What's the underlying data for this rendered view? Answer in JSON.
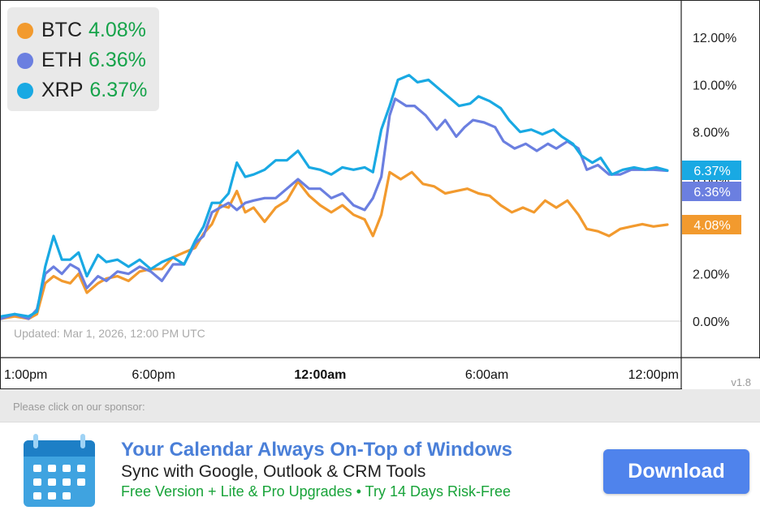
{
  "chart_data": {
    "type": "line",
    "ylabel_side": "right",
    "ylim": [
      -1.0,
      13.5
    ],
    "yticks": [
      "12.00%",
      "10.00%",
      "8.00%",
      "6.00%",
      "4.00%",
      "2.00%",
      "0.00%"
    ],
    "ytick_values": [
      12,
      10,
      8,
      6,
      4,
      2,
      0
    ],
    "xlim_hours": [
      0,
      24.5
    ],
    "xticks": [
      {
        "label": "1:00pm",
        "hour": 0.5,
        "bold": false
      },
      {
        "label": "6:00pm",
        "hour": 5.5,
        "bold": false
      },
      {
        "label": "12:00am",
        "hour": 11.5,
        "bold": true
      },
      {
        "label": "6:00am",
        "hour": 17.5,
        "bold": false
      },
      {
        "label": "12:00pm",
        "hour": 23.5,
        "bold": false
      }
    ],
    "updated_note": "Updated: Mar 1, 2026, 12:00 PM UTC",
    "version": "v1.8",
    "series": [
      {
        "name": "BTC",
        "color": "#f29a2e",
        "last_label": "4.08%",
        "points": [
          [
            0,
            0.1
          ],
          [
            0.5,
            0.2
          ],
          [
            1,
            0.1
          ],
          [
            1.3,
            0.3
          ],
          [
            1.6,
            1.6
          ],
          [
            1.9,
            1.9
          ],
          [
            2.2,
            1.7
          ],
          [
            2.5,
            1.6
          ],
          [
            2.8,
            2.0
          ],
          [
            3.1,
            1.2
          ],
          [
            3.5,
            1.6
          ],
          [
            3.8,
            1.8
          ],
          [
            4.2,
            1.9
          ],
          [
            4.6,
            1.7
          ],
          [
            5,
            2.1
          ],
          [
            5.4,
            2.2
          ],
          [
            5.8,
            2.2
          ],
          [
            6.2,
            2.7
          ],
          [
            6.6,
            2.9
          ],
          [
            7,
            3.1
          ],
          [
            7.3,
            3.7
          ],
          [
            7.6,
            4.1
          ],
          [
            7.9,
            4.9
          ],
          [
            8.2,
            4.8
          ],
          [
            8.5,
            5.5
          ],
          [
            8.8,
            4.6
          ],
          [
            9.1,
            4.8
          ],
          [
            9.5,
            4.2
          ],
          [
            9.9,
            4.8
          ],
          [
            10.3,
            5.1
          ],
          [
            10.7,
            5.9
          ],
          [
            11.1,
            5.3
          ],
          [
            11.5,
            4.9
          ],
          [
            11.9,
            4.6
          ],
          [
            12.3,
            4.9
          ],
          [
            12.7,
            4.5
          ],
          [
            13.1,
            4.3
          ],
          [
            13.4,
            3.6
          ],
          [
            13.7,
            4.5
          ],
          [
            14.0,
            6.3
          ],
          [
            14.4,
            6.0
          ],
          [
            14.8,
            6.3
          ],
          [
            15.2,
            5.8
          ],
          [
            15.6,
            5.7
          ],
          [
            16.0,
            5.4
          ],
          [
            16.4,
            5.5
          ],
          [
            16.8,
            5.6
          ],
          [
            17.2,
            5.4
          ],
          [
            17.6,
            5.3
          ],
          [
            18.0,
            4.9
          ],
          [
            18.4,
            4.6
          ],
          [
            18.8,
            4.8
          ],
          [
            19.2,
            4.6
          ],
          [
            19.6,
            5.1
          ],
          [
            20.0,
            4.8
          ],
          [
            20.4,
            5.1
          ],
          [
            20.8,
            4.5
          ],
          [
            21.1,
            3.9
          ],
          [
            21.5,
            3.8
          ],
          [
            21.9,
            3.6
          ],
          [
            22.3,
            3.9
          ],
          [
            22.7,
            4.0
          ],
          [
            23.1,
            4.1
          ],
          [
            23.5,
            4.0
          ],
          [
            24.0,
            4.08
          ]
        ]
      },
      {
        "name": "ETH",
        "color": "#6b7fe0",
        "last_label": "6.36%",
        "points": [
          [
            0,
            0.1
          ],
          [
            0.5,
            0.3
          ],
          [
            1,
            0.1
          ],
          [
            1.3,
            0.5
          ],
          [
            1.6,
            2.0
          ],
          [
            1.9,
            2.3
          ],
          [
            2.2,
            2.0
          ],
          [
            2.5,
            2.4
          ],
          [
            2.8,
            2.2
          ],
          [
            3.1,
            1.4
          ],
          [
            3.5,
            1.9
          ],
          [
            3.8,
            1.7
          ],
          [
            4.2,
            2.1
          ],
          [
            4.6,
            2.0
          ],
          [
            5,
            2.3
          ],
          [
            5.4,
            2.1
          ],
          [
            5.8,
            1.7
          ],
          [
            6.2,
            2.4
          ],
          [
            6.6,
            2.4
          ],
          [
            7,
            3.3
          ],
          [
            7.3,
            3.6
          ],
          [
            7.6,
            4.6
          ],
          [
            7.9,
            4.8
          ],
          [
            8.2,
            5.0
          ],
          [
            8.5,
            4.7
          ],
          [
            8.8,
            5.0
          ],
          [
            9.1,
            5.1
          ],
          [
            9.5,
            5.2
          ],
          [
            9.9,
            5.2
          ],
          [
            10.3,
            5.6
          ],
          [
            10.7,
            6.0
          ],
          [
            11.1,
            5.6
          ],
          [
            11.5,
            5.6
          ],
          [
            11.9,
            5.2
          ],
          [
            12.3,
            5.4
          ],
          [
            12.7,
            4.9
          ],
          [
            13.1,
            4.7
          ],
          [
            13.4,
            5.2
          ],
          [
            13.7,
            6.1
          ],
          [
            14.0,
            8.7
          ],
          [
            14.2,
            9.4
          ],
          [
            14.6,
            9.1
          ],
          [
            14.9,
            9.1
          ],
          [
            15.3,
            8.7
          ],
          [
            15.7,
            8.1
          ],
          [
            16.0,
            8.5
          ],
          [
            16.4,
            7.8
          ],
          [
            16.7,
            8.2
          ],
          [
            17.0,
            8.5
          ],
          [
            17.4,
            8.4
          ],
          [
            17.8,
            8.2
          ],
          [
            18.1,
            7.6
          ],
          [
            18.5,
            7.3
          ],
          [
            18.9,
            7.5
          ],
          [
            19.3,
            7.2
          ],
          [
            19.7,
            7.5
          ],
          [
            20.0,
            7.3
          ],
          [
            20.4,
            7.6
          ],
          [
            20.8,
            7.3
          ],
          [
            21.1,
            6.4
          ],
          [
            21.5,
            6.6
          ],
          [
            21.9,
            6.2
          ],
          [
            22.3,
            6.2
          ],
          [
            22.7,
            6.4
          ],
          [
            23.1,
            6.4
          ],
          [
            23.5,
            6.4
          ],
          [
            24.0,
            6.36
          ]
        ]
      },
      {
        "name": "XRP",
        "color": "#19a9e3",
        "last_label": "6.37%",
        "points": [
          [
            0,
            0.2
          ],
          [
            0.5,
            0.3
          ],
          [
            1,
            0.2
          ],
          [
            1.3,
            0.4
          ],
          [
            1.6,
            2.3
          ],
          [
            1.9,
            3.6
          ],
          [
            2.2,
            2.6
          ],
          [
            2.5,
            2.6
          ],
          [
            2.8,
            2.9
          ],
          [
            3.1,
            1.9
          ],
          [
            3.5,
            2.8
          ],
          [
            3.8,
            2.5
          ],
          [
            4.2,
            2.6
          ],
          [
            4.6,
            2.3
          ],
          [
            5,
            2.6
          ],
          [
            5.4,
            2.2
          ],
          [
            5.8,
            2.5
          ],
          [
            6.2,
            2.7
          ],
          [
            6.6,
            2.4
          ],
          [
            7,
            3.4
          ],
          [
            7.3,
            4.0
          ],
          [
            7.6,
            5.0
          ],
          [
            7.9,
            5.0
          ],
          [
            8.2,
            5.4
          ],
          [
            8.5,
            6.7
          ],
          [
            8.8,
            6.1
          ],
          [
            9.1,
            6.2
          ],
          [
            9.5,
            6.4
          ],
          [
            9.9,
            6.8
          ],
          [
            10.3,
            6.8
          ],
          [
            10.7,
            7.2
          ],
          [
            11.1,
            6.5
          ],
          [
            11.5,
            6.4
          ],
          [
            11.9,
            6.2
          ],
          [
            12.3,
            6.5
          ],
          [
            12.7,
            6.4
          ],
          [
            13.1,
            6.5
          ],
          [
            13.4,
            6.3
          ],
          [
            13.7,
            8.1
          ],
          [
            14.0,
            9.1
          ],
          [
            14.3,
            10.2
          ],
          [
            14.7,
            10.4
          ],
          [
            15.0,
            10.1
          ],
          [
            15.4,
            10.2
          ],
          [
            15.8,
            9.8
          ],
          [
            16.1,
            9.5
          ],
          [
            16.5,
            9.1
          ],
          [
            16.9,
            9.2
          ],
          [
            17.2,
            9.5
          ],
          [
            17.6,
            9.3
          ],
          [
            18.0,
            9.0
          ],
          [
            18.3,
            8.5
          ],
          [
            18.7,
            8.0
          ],
          [
            19.1,
            8.1
          ],
          [
            19.5,
            7.9
          ],
          [
            19.9,
            8.1
          ],
          [
            20.2,
            7.8
          ],
          [
            20.6,
            7.5
          ],
          [
            20.9,
            7.0
          ],
          [
            21.3,
            6.7
          ],
          [
            21.6,
            6.9
          ],
          [
            22.0,
            6.2
          ],
          [
            22.4,
            6.4
          ],
          [
            22.8,
            6.5
          ],
          [
            23.2,
            6.4
          ],
          [
            23.6,
            6.5
          ],
          [
            24.0,
            6.37
          ]
        ]
      }
    ]
  },
  "legend": [
    {
      "name": "BTC",
      "value": "4.08%",
      "color": "#f29a2e"
    },
    {
      "name": "ETH",
      "value": "6.36%",
      "color": "#6b7fe0"
    },
    {
      "name": "XRP",
      "value": "6.37%",
      "color": "#19a9e3"
    }
  ],
  "sponsor": {
    "label": "Please click on our sponsor:",
    "title": "Your Calendar Always On-Top of Windows",
    "subtitle": "Sync with Google, Outlook & CRM Tools",
    "tagline": "Free Version + Lite & Pro Upgrades • Try 14 Days Risk-Free",
    "button_label": "Download",
    "icon": "calendar-icon"
  }
}
